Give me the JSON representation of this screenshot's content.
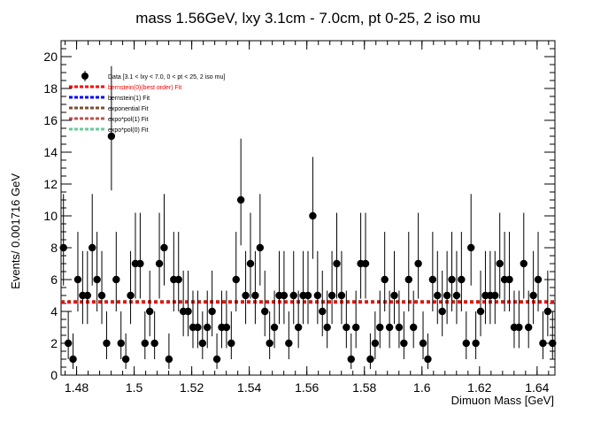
{
  "chart_data": {
    "type": "scatter",
    "title": "mass 1.56GeV, lxy 3.1cm - 7.0cm, pt 0-25, 2 iso mu",
    "xlabel": "Dimuon Mass [GeV]",
    "ylabel": "Events/ 0.001716 GeV",
    "xlim": [
      1.4746,
      1.6462
    ],
    "ylim": [
      0,
      21
    ],
    "x_ticks": [
      "1.48",
      "1.5",
      "1.52",
      "1.54",
      "1.56",
      "1.58",
      "1.6",
      "1.62",
      "1.64"
    ],
    "y_ticks": [
      "0",
      "2",
      "4",
      "6",
      "8",
      "10",
      "12",
      "14",
      "16",
      "18",
      "20"
    ],
    "grid": false,
    "legend_position": "top-left",
    "legend": [
      {
        "label": "Data [3.1 < lxy < 7.0, 0 < pt < 25, 2 iso mu]",
        "color": "#000000",
        "style": "marker"
      },
      {
        "label": "bernstein(0)(best order) Fit",
        "color": "#ff0000",
        "style": "dashed"
      },
      {
        "label": "bernstein(1) Fit",
        "color": "#0000ff",
        "style": "dashed"
      },
      {
        "label": "exponential Fit",
        "color": "#7a5230",
        "style": "dashed"
      },
      {
        "label": "expo*pol(1) Fit",
        "color": "#c0504d",
        "style": "dashed"
      },
      {
        "label": "expo*pol(0) Fit",
        "color": "#66cc99",
        "style": "dashed"
      }
    ],
    "fit_level": 4.6,
    "series": [
      {
        "name": "Data [3.1 < lxy < 7.0, 0 < pt < 25, 2 iso mu]",
        "values": [
          8,
          2,
          1,
          6,
          5,
          5,
          8,
          6,
          5,
          2,
          15,
          6,
          2,
          1,
          5,
          7,
          7,
          2,
          4,
          2,
          7,
          8,
          1,
          6,
          6,
          4,
          4,
          3,
          3,
          2,
          3,
          4,
          1,
          3,
          3,
          2,
          6,
          11,
          5,
          7,
          5,
          8,
          4,
          2,
          3,
          5,
          5,
          2,
          5,
          3,
          5,
          5,
          10,
          5,
          4,
          3,
          5,
          7,
          5,
          3,
          1,
          3,
          7,
          7,
          1,
          2,
          3,
          6,
          3,
          5,
          3,
          2,
          6,
          3,
          7,
          2,
          1,
          6,
          5,
          4,
          5,
          6,
          5,
          6,
          2,
          8,
          2,
          4,
          5,
          5,
          5,
          7,
          6,
          6,
          3,
          3,
          7,
          3,
          5,
          6,
          2,
          4,
          2
        ]
      }
    ]
  }
}
